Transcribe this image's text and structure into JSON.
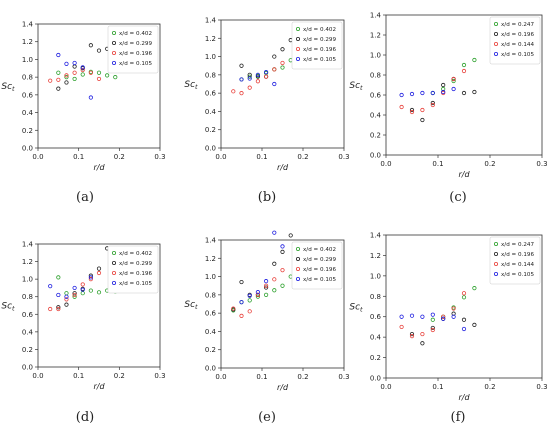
{
  "figure": {
    "captions": [
      "(a)",
      "(b)",
      "(c)",
      "(d)",
      "(e)",
      "(f)"
    ]
  },
  "colors": {
    "green": "#2ca02c",
    "black": "#222222",
    "red": "#e8413b",
    "blue": "#1f1fe0",
    "frame": "#333333"
  },
  "chart_data": [
    {
      "type": "scatter",
      "xlabel": "r/d",
      "ylabel": "Sc_t",
      "xlim": [
        0,
        0.3
      ],
      "ylim": [
        0.0,
        1.4
      ],
      "xticks": [
        "0.0",
        "0.1",
        "0.2",
        "0.3"
      ],
      "yticks": [
        "0.0",
        "0.2",
        "0.4",
        "0.6",
        "0.8",
        "1.0",
        "1.2",
        "1.4"
      ],
      "grid": false,
      "legend": "top-right",
      "series": [
        {
          "name": "x/d = 0.402",
          "color": "green",
          "points": [
            [
              0.05,
              0.85
            ],
            [
              0.07,
              0.8
            ],
            [
              0.09,
              0.78
            ],
            [
              0.11,
              0.83
            ],
            [
              0.13,
              0.86
            ],
            [
              0.15,
              0.85
            ],
            [
              0.17,
              0.82
            ],
            [
              0.19,
              0.8
            ]
          ]
        },
        {
          "name": "x/d = 0.299",
          "color": "black",
          "points": [
            [
              0.05,
              0.67
            ],
            [
              0.07,
              0.74
            ],
            [
              0.09,
              0.92
            ],
            [
              0.11,
              0.9
            ],
            [
              0.13,
              1.16
            ],
            [
              0.15,
              1.1
            ],
            [
              0.17,
              1.12
            ]
          ]
        },
        {
          "name": "x/d = 0.196",
          "color": "red",
          "points": [
            [
              0.03,
              0.76
            ],
            [
              0.05,
              0.77
            ],
            [
              0.07,
              0.82
            ],
            [
              0.09,
              0.85
            ],
            [
              0.11,
              0.88
            ],
            [
              0.13,
              0.85
            ],
            [
              0.15,
              0.78
            ]
          ]
        },
        {
          "name": "x/d = 0.105",
          "color": "blue",
          "points": [
            [
              0.05,
              1.05
            ],
            [
              0.07,
              0.95
            ],
            [
              0.09,
              0.96
            ],
            [
              0.11,
              0.91
            ],
            [
              0.13,
              0.57
            ]
          ]
        }
      ]
    },
    {
      "type": "scatter",
      "xlabel": "r/d",
      "ylabel": "Sc_t",
      "xlim": [
        0,
        0.3
      ],
      "ylim": [
        0.0,
        1.4
      ],
      "xticks": [
        "0.0",
        "0.1",
        "0.2",
        "0.3"
      ],
      "yticks": [
        "0.0",
        "0.2",
        "0.4",
        "0.6",
        "0.8",
        "1.0",
        "1.2",
        "1.4"
      ],
      "grid": false,
      "legend": "top-right",
      "series": [
        {
          "name": "x/d = 0.402",
          "color": "green",
          "points": [
            [
              0.05,
              0.75
            ],
            [
              0.07,
              0.78
            ],
            [
              0.09,
              0.79
            ],
            [
              0.11,
              0.82
            ],
            [
              0.13,
              0.86
            ],
            [
              0.15,
              0.88
            ],
            [
              0.17,
              0.96
            ],
            [
              0.19,
              1.0
            ]
          ]
        },
        {
          "name": "x/d = 0.299",
          "color": "black",
          "points": [
            [
              0.05,
              0.9
            ],
            [
              0.07,
              0.8
            ],
            [
              0.09,
              0.78
            ],
            [
              0.11,
              0.78
            ],
            [
              0.13,
              1.0
            ],
            [
              0.15,
              1.08
            ],
            [
              0.17,
              1.18
            ]
          ]
        },
        {
          "name": "x/d = 0.196",
          "color": "red",
          "points": [
            [
              0.03,
              0.62
            ],
            [
              0.05,
              0.6
            ],
            [
              0.07,
              0.66
            ],
            [
              0.09,
              0.73
            ],
            [
              0.11,
              0.78
            ],
            [
              0.13,
              0.86
            ],
            [
              0.15,
              0.93
            ]
          ]
        },
        {
          "name": "x/d = 0.105",
          "color": "blue",
          "points": [
            [
              0.05,
              0.75
            ],
            [
              0.07,
              0.76
            ],
            [
              0.09,
              0.8
            ],
            [
              0.11,
              0.83
            ],
            [
              0.13,
              0.7
            ]
          ]
        }
      ]
    },
    {
      "type": "scatter",
      "xlabel": "r/d",
      "ylabel": "Sc_t",
      "xlim": [
        0,
        0.3
      ],
      "ylim": [
        0.0,
        1.4
      ],
      "xticks": [
        "0.0",
        "0.1",
        "0.2",
        "0.3"
      ],
      "yticks": [
        "0.0",
        "0.2",
        "0.4",
        "0.6",
        "0.8",
        "1.0",
        "1.2",
        "1.4"
      ],
      "grid": false,
      "legend": "top-right",
      "series": [
        {
          "name": "x/d = 0.247",
          "color": "green",
          "points": [
            [
              0.09,
              0.62
            ],
            [
              0.11,
              0.66
            ],
            [
              0.13,
              0.74
            ],
            [
              0.15,
              0.9
            ],
            [
              0.17,
              0.95
            ]
          ]
        },
        {
          "name": "x/d = 0.196",
          "color": "black",
          "points": [
            [
              0.05,
              0.45
            ],
            [
              0.07,
              0.35
            ],
            [
              0.09,
              0.52
            ],
            [
              0.11,
              0.7
            ],
            [
              0.13,
              0.76
            ],
            [
              0.15,
              0.62
            ],
            [
              0.17,
              0.63
            ]
          ]
        },
        {
          "name": "x/d = 0.144",
          "color": "red",
          "points": [
            [
              0.03,
              0.48
            ],
            [
              0.05,
              0.43
            ],
            [
              0.07,
              0.45
            ],
            [
              0.09,
              0.5
            ],
            [
              0.11,
              0.62
            ],
            [
              0.13,
              0.76
            ],
            [
              0.15,
              0.84
            ]
          ]
        },
        {
          "name": "x/d = 0.105",
          "color": "blue",
          "points": [
            [
              0.03,
              0.6
            ],
            [
              0.05,
              0.61
            ],
            [
              0.07,
              0.62
            ],
            [
              0.09,
              0.62
            ],
            [
              0.11,
              0.63
            ],
            [
              0.13,
              0.66
            ]
          ]
        }
      ]
    },
    {
      "type": "scatter",
      "xlabel": "r/d",
      "ylabel": "Sc_t",
      "xlim": [
        0,
        0.3
      ],
      "ylim": [
        0.0,
        1.4
      ],
      "xticks": [
        "0.0",
        "0.1",
        "0.2",
        "0.3"
      ],
      "yticks": [
        "0.0",
        "0.2",
        "0.4",
        "0.6",
        "0.8",
        "1.0",
        "1.2",
        "1.4"
      ],
      "grid": false,
      "legend": "top-right",
      "series": [
        {
          "name": "x/d = 0.402",
          "color": "green",
          "points": [
            [
              0.05,
              1.02
            ],
            [
              0.07,
              0.84
            ],
            [
              0.09,
              0.8
            ],
            [
              0.11,
              0.84
            ],
            [
              0.13,
              0.87
            ],
            [
              0.15,
              0.85
            ],
            [
              0.17,
              0.87
            ],
            [
              0.19,
              0.86
            ]
          ]
        },
        {
          "name": "x/d = 0.299",
          "color": "black",
          "points": [
            [
              0.05,
              0.68
            ],
            [
              0.07,
              0.71
            ],
            [
              0.09,
              0.84
            ],
            [
              0.11,
              0.89
            ],
            [
              0.13,
              1.04
            ],
            [
              0.15,
              1.12
            ],
            [
              0.17,
              1.35
            ],
            [
              0.19,
              1.29
            ]
          ]
        },
        {
          "name": "x/d = 0.196",
          "color": "red",
          "points": [
            [
              0.03,
              0.66
            ],
            [
              0.05,
              0.66
            ],
            [
              0.07,
              0.77
            ],
            [
              0.09,
              0.82
            ],
            [
              0.11,
              0.94
            ],
            [
              0.13,
              1.0
            ],
            [
              0.15,
              1.07
            ]
          ]
        },
        {
          "name": "x/d = 0.105",
          "color": "blue",
          "points": [
            [
              0.03,
              0.92
            ],
            [
              0.05,
              0.82
            ],
            [
              0.07,
              0.8
            ],
            [
              0.09,
              0.9
            ],
            [
              0.11,
              0.88
            ],
            [
              0.13,
              1.02
            ]
          ]
        }
      ]
    },
    {
      "type": "scatter",
      "xlabel": "r/d",
      "ylabel": "Sc_t",
      "xlim": [
        0,
        0.3
      ],
      "ylim": [
        0.0,
        1.4
      ],
      "xticks": [
        "0.0",
        "0.1",
        "0.2",
        "0.3"
      ],
      "yticks": [
        "0.0",
        "0.2",
        "0.4",
        "0.6",
        "0.8",
        "1.0",
        "1.2",
        "1.4"
      ],
      "grid": false,
      "legend": "top-right",
      "series": [
        {
          "name": "x/d = 0.402",
          "color": "green",
          "points": [
            [
              0.03,
              0.63
            ],
            [
              0.05,
              0.72
            ],
            [
              0.07,
              0.74
            ],
            [
              0.09,
              0.78
            ],
            [
              0.11,
              0.8
            ],
            [
              0.13,
              0.85
            ],
            [
              0.15,
              0.9
            ],
            [
              0.17,
              1.0
            ],
            [
              0.19,
              1.05
            ]
          ]
        },
        {
          "name": "x/d = 0.299",
          "color": "black",
          "points": [
            [
              0.03,
              0.64
            ],
            [
              0.05,
              0.94
            ],
            [
              0.07,
              0.8
            ],
            [
              0.09,
              0.8
            ],
            [
              0.11,
              0.88
            ],
            [
              0.13,
              1.14
            ],
            [
              0.15,
              1.27
            ],
            [
              0.17,
              1.45
            ]
          ]
        },
        {
          "name": "x/d = 0.196",
          "color": "red",
          "points": [
            [
              0.03,
              0.65
            ],
            [
              0.05,
              0.57
            ],
            [
              0.07,
              0.62
            ],
            [
              0.09,
              0.8
            ],
            [
              0.11,
              0.9
            ],
            [
              0.13,
              0.97
            ],
            [
              0.15,
              1.07
            ]
          ]
        },
        {
          "name": "x/d = 0.105",
          "color": "blue",
          "points": [
            [
              0.05,
              0.72
            ],
            [
              0.07,
              0.79
            ],
            [
              0.09,
              0.83
            ],
            [
              0.11,
              0.95
            ],
            [
              0.13,
              1.48
            ],
            [
              0.15,
              1.33
            ]
          ]
        }
      ]
    },
    {
      "type": "scatter",
      "xlabel": "r/d",
      "ylabel": "Sc_t",
      "xlim": [
        0,
        0.3
      ],
      "ylim": [
        0.0,
        1.4
      ],
      "xticks": [
        "0.0",
        "0.1",
        "0.2",
        "0.3"
      ],
      "yticks": [
        "0.0",
        "0.2",
        "0.4",
        "0.6",
        "0.8",
        "1.0",
        "1.2",
        "1.4"
      ],
      "grid": false,
      "legend": "top-right",
      "series": [
        {
          "name": "x/d = 0.247",
          "color": "green",
          "points": [
            [
              0.09,
              0.57
            ],
            [
              0.11,
              0.6
            ],
            [
              0.13,
              0.69
            ],
            [
              0.15,
              0.79
            ],
            [
              0.17,
              0.88
            ]
          ]
        },
        {
          "name": "x/d = 0.196",
          "color": "black",
          "points": [
            [
              0.05,
              0.43
            ],
            [
              0.07,
              0.34
            ],
            [
              0.09,
              0.49
            ],
            [
              0.11,
              0.58
            ],
            [
              0.13,
              0.63
            ],
            [
              0.15,
              0.57
            ],
            [
              0.17,
              0.52
            ]
          ]
        },
        {
          "name": "x/d = 0.144",
          "color": "red",
          "points": [
            [
              0.03,
              0.5
            ],
            [
              0.05,
              0.41
            ],
            [
              0.07,
              0.43
            ],
            [
              0.09,
              0.47
            ],
            [
              0.11,
              0.6
            ],
            [
              0.13,
              0.68
            ],
            [
              0.15,
              0.83
            ]
          ]
        },
        {
          "name": "x/d = 0.105",
          "color": "blue",
          "points": [
            [
              0.03,
              0.6
            ],
            [
              0.05,
              0.61
            ],
            [
              0.07,
              0.6
            ],
            [
              0.09,
              0.62
            ],
            [
              0.11,
              0.58
            ],
            [
              0.13,
              0.6
            ],
            [
              0.15,
              0.48
            ]
          ]
        }
      ]
    }
  ]
}
